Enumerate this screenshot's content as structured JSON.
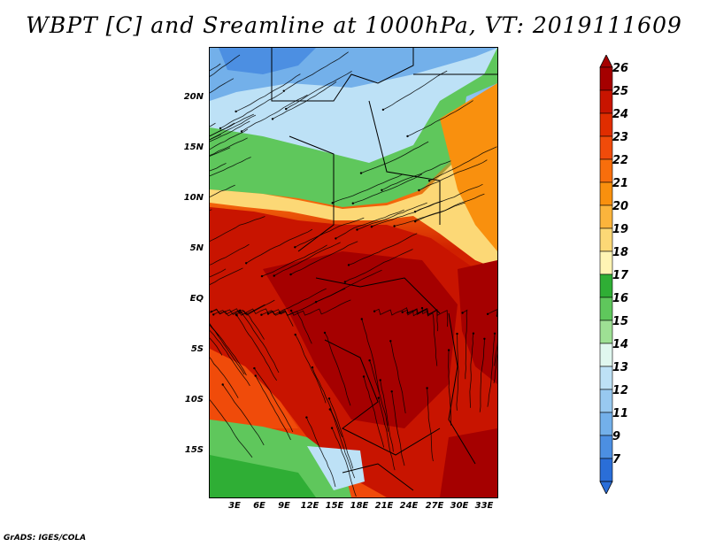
{
  "title": "WBPT [C] and Sreamline at 1000hPa, VT: 2019111609",
  "credit": "GrADS: IGES/COLA",
  "map": {
    "lat_labels": [
      "20N",
      "15N",
      "10N",
      "5N",
      "EQ",
      "5S",
      "10S",
      "15S"
    ],
    "lon_labels": [
      "3E",
      "6E",
      "9E",
      "12E",
      "15E",
      "18E",
      "21E",
      "24E",
      "27E",
      "30E",
      "33E"
    ]
  },
  "colorbar": {
    "levels": [
      "26",
      "25",
      "24",
      "23",
      "22",
      "21",
      "20",
      "19",
      "18",
      "17",
      "16",
      "15",
      "14",
      "13",
      "12",
      "11",
      "9",
      "7"
    ],
    "colors": [
      "#a50000",
      "#c81400",
      "#e02d00",
      "#f04b0a",
      "#f86e0c",
      "#f9900e",
      "#fbb43c",
      "#fcd876",
      "#fff4b4",
      "#2fae35",
      "#5fc75c",
      "#9ee094",
      "#e0f7ef",
      "#bde1f6",
      "#98c9f0",
      "#73b0ea",
      "#4c8fe2",
      "#2a6ed8"
    ]
  }
}
